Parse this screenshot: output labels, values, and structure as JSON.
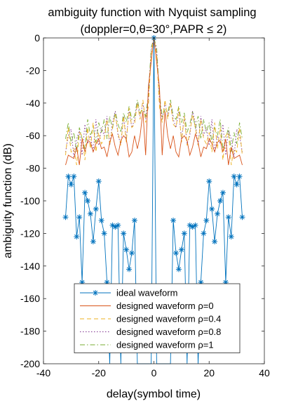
{
  "chart_data": {
    "type": "line",
    "title": "ambiguity function with Nyquist sampling",
    "subtitle": "(doppler=0,θ=30°,PAPR ≤ 2)",
    "xlabel": "delay(symbol time)",
    "ylabel": "ambiguity function (dB)",
    "xlim": [
      -40,
      40
    ],
    "ylim": [
      -200,
      0
    ],
    "xticks": [
      "-40",
      "-20",
      "0",
      "20",
      "40"
    ],
    "yticks": [
      "0",
      "-20",
      "-40",
      "-60",
      "-80",
      "-100",
      "-120",
      "-140",
      "-160",
      "-180",
      "-200"
    ],
    "grid": false,
    "legend_position": "bottom-center",
    "x": [
      -32,
      -31,
      -30,
      -29,
      -28,
      -27,
      -26,
      -25,
      -24,
      -23,
      -22,
      -21,
      -20,
      -19,
      -18,
      -17,
      -16,
      -15,
      -14,
      -13,
      -12,
      -11,
      -10,
      -9,
      -8,
      -7,
      -6,
      -5,
      -4,
      -3,
      -2,
      -1,
      0,
      1,
      2,
      3,
      4,
      5,
      6,
      7,
      8,
      9,
      10,
      11,
      12,
      13,
      14,
      15,
      16,
      17,
      18,
      19,
      20,
      21,
      22,
      23,
      24,
      25,
      26,
      27,
      28,
      29,
      30,
      31,
      32
    ],
    "series": [
      {
        "name": "ideal waveform",
        "color": "#0072BD",
        "style": "solid",
        "marker": "asterisk",
        "values": [
          -110,
          -85,
          -90,
          -85,
          -122,
          -110,
          -150,
          -95,
          -100,
          -108,
          -125,
          -105,
          -88,
          -112,
          -120,
          -150,
          -200,
          -115,
          -116,
          -115,
          -200,
          -120,
          -130,
          -142,
          -132,
          -112,
          -200,
          -200,
          -200,
          -200,
          -200,
          -200,
          0,
          -200,
          -200,
          -200,
          -200,
          -200,
          -200,
          -112,
          -132,
          -142,
          -130,
          -120,
          -200,
          -115,
          -116,
          -115,
          -200,
          -150,
          -120,
          -112,
          -88,
          -105,
          -125,
          -108,
          -100,
          -95,
          -150,
          -110,
          -122,
          -85,
          -90,
          -85,
          -110
        ]
      },
      {
        "name": "designed waveform ρ=0",
        "color": "#D95319",
        "style": "solid",
        "values": [
          -78,
          -72,
          -73,
          -74,
          -67,
          -78,
          -62,
          -70,
          -63,
          -64,
          -70,
          -65,
          -62,
          -68,
          -67,
          -73,
          -64,
          -59,
          -67,
          -72,
          -63,
          -60,
          -62,
          -73,
          -70,
          -60,
          -68,
          -60,
          -45,
          -72,
          -30,
          -15,
          0,
          -15,
          -30,
          -72,
          -45,
          -60,
          -68,
          -60,
          -70,
          -73,
          -62,
          -60,
          -63,
          -72,
          -67,
          -59,
          -64,
          -73,
          -67,
          -68,
          -62,
          -65,
          -70,
          -64,
          -63,
          -70,
          -62,
          -78,
          -67,
          -74,
          -73,
          -72,
          -78
        ]
      },
      {
        "name": "designed waveform ρ=0.4",
        "color": "#EDB120",
        "style": "dashed",
        "values": [
          -72,
          -55,
          -70,
          -68,
          -78,
          -58,
          -60,
          -75,
          -55,
          -68,
          -52,
          -70,
          -58,
          -65,
          -62,
          -50,
          -66,
          -55,
          -47,
          -58,
          -66,
          -48,
          -64,
          -43,
          -55,
          -53,
          -40,
          -50,
          -38,
          -52,
          -42,
          -10,
          0,
          -10,
          -42,
          -52,
          -38,
          -50,
          -40,
          -53,
          -55,
          -43,
          -64,
          -48,
          -66,
          -58,
          -47,
          -55,
          -66,
          -50,
          -62,
          -65,
          -58,
          -70,
          -52,
          -68,
          -55,
          -75,
          -60,
          -58,
          -78,
          -68,
          -70,
          -55,
          -72
        ]
      },
      {
        "name": "designed waveform ρ=0.8",
        "color": "#7E2F8E",
        "style": "dotted",
        "values": [
          -70,
          -60,
          -56,
          -73,
          -62,
          -57,
          -72,
          -53,
          -65,
          -60,
          -70,
          -50,
          -66,
          -55,
          -60,
          -48,
          -66,
          -52,
          -45,
          -60,
          -65,
          -48,
          -62,
          -45,
          -55,
          -50,
          -40,
          -48,
          -40,
          -50,
          -38,
          -8,
          0,
          -8,
          -38,
          -50,
          -40,
          -48,
          -40,
          -50,
          -55,
          -45,
          -62,
          -48,
          -65,
          -60,
          -45,
          -52,
          -66,
          -48,
          -60,
          -55,
          -66,
          -50,
          -70,
          -60,
          -65,
          -53,
          -72,
          -57,
          -62,
          -73,
          -56,
          -60,
          -70
        ]
      },
      {
        "name": "designed waveform ρ=1",
        "color": "#77AC30",
        "style": "dashdot",
        "values": [
          -62,
          -52,
          -65,
          -58,
          -70,
          -55,
          -62,
          -68,
          -50,
          -60,
          -55,
          -64,
          -52,
          -58,
          -50,
          -62,
          -48,
          -56,
          -45,
          -53,
          -58,
          -46,
          -52,
          -42,
          -50,
          -48,
          -38,
          -46,
          -44,
          -48,
          -35,
          -6,
          0,
          -6,
          -35,
          -48,
          -44,
          -46,
          -38,
          -48,
          -50,
          -42,
          -52,
          -46,
          -58,
          -53,
          -45,
          -56,
          -48,
          -62,
          -50,
          -58,
          -52,
          -64,
          -55,
          -60,
          -50,
          -68,
          -62,
          -55,
          -70,
          -58,
          -65,
          -52,
          -62
        ]
      }
    ]
  }
}
